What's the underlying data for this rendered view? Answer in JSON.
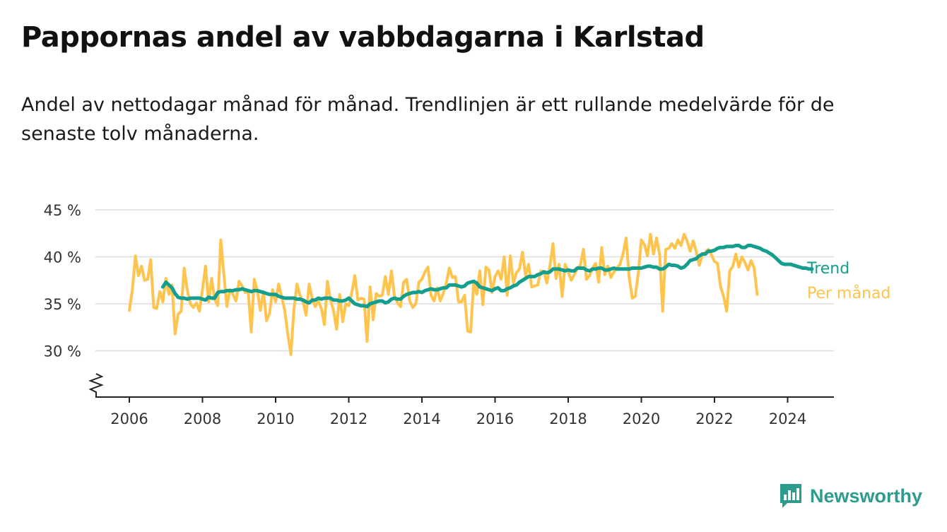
{
  "title": "Pappornas andel av vabbdagarna i Karlstad",
  "subtitle": "Andel av nettodagar månad för månad. Trendlinjen är ett rullande medelvärde för de senaste tolv månaderna.",
  "colors": {
    "trend": "#139e8e",
    "monthly": "#ffc44d",
    "grid": "#dddddd",
    "axis": "#222222",
    "brand": "#2d9c8c"
  },
  "brand": {
    "name": "Newsworthy",
    "icon": "newsworthy-bar-chart-icon"
  },
  "chart_data": {
    "type": "line",
    "y_ticks": [
      "45 %",
      "40 %",
      "35 %",
      "30 %"
    ],
    "x_ticks": [
      "2006",
      "2008",
      "2010",
      "2012",
      "2014",
      "2016",
      "2018",
      "2020",
      "2022",
      "2024"
    ],
    "ylim": [
      25,
      45
    ],
    "xlim": [
      "2005-03",
      "2025-02"
    ],
    "y_axis_broken": true,
    "grid": true,
    "series_labels": [
      "Trend",
      "Per månad"
    ],
    "series": [
      {
        "name": "Trend",
        "color": "#139e8e",
        "start": "2006-12",
        "values": [
          36.8,
          37.3,
          37.0,
          36.7,
          36.1,
          35.7,
          35.6,
          35.6,
          35.5,
          35.6,
          35.6,
          35.6,
          35.6,
          35.5,
          35.4,
          35.7,
          35.6,
          35.6,
          36.2,
          36.3,
          36.3,
          36.4,
          36.4,
          36.4,
          36.5,
          36.5,
          36.6,
          36.5,
          36.4,
          36.3,
          36.4,
          36.4,
          36.3,
          36.2,
          36.1,
          36.0,
          36.0,
          36.0,
          35.8,
          35.7,
          35.6,
          35.6,
          35.6,
          35.6,
          35.5,
          35.5,
          35.4,
          35.2,
          35.1,
          35.4,
          35.4,
          35.6,
          35.5,
          35.6,
          35.6,
          35.6,
          35.4,
          35.4,
          35.3,
          35.3,
          35.4,
          35.6,
          35.3,
          35.0,
          34.9,
          34.8,
          34.8,
          34.7,
          35.0,
          35.1,
          35.2,
          35.3,
          35.3,
          35.1,
          35.2,
          35.5,
          35.6,
          35.5,
          35.5,
          35.8,
          36.0,
          36.1,
          36.2,
          36.2,
          36.3,
          36.2,
          36.4,
          36.5,
          36.6,
          36.5,
          36.5,
          36.6,
          36.7,
          36.7,
          37.0,
          37.0,
          37.0,
          36.9,
          36.8,
          36.9,
          37.2,
          37.3,
          37.4,
          37.2,
          36.8,
          36.7,
          36.6,
          36.5,
          36.4,
          36.6,
          36.7,
          36.4,
          36.4,
          36.6,
          36.7,
          36.9,
          37.0,
          37.3,
          37.5,
          37.7,
          37.9,
          37.9,
          37.9,
          38.1,
          38.2,
          38.4,
          38.3,
          38.4,
          38.7,
          38.7,
          38.7,
          38.6,
          38.5,
          38.6,
          38.5,
          38.5,
          38.8,
          38.8,
          38.8,
          38.6,
          38.5,
          38.7,
          38.7,
          38.8,
          38.8,
          38.6,
          38.6,
          38.7,
          38.8,
          38.7,
          38.7,
          38.7,
          38.7,
          38.7,
          38.8,
          38.8,
          38.8,
          38.8,
          38.9,
          39.0,
          39.0,
          38.9,
          38.9,
          38.7,
          38.7,
          38.9,
          39.2,
          39.1,
          39.1,
          39.0,
          38.8,
          38.9,
          39.2,
          39.6,
          39.7,
          39.8,
          40.1,
          40.3,
          40.3,
          40.6,
          40.6,
          40.7,
          40.9,
          41.0,
          41.0,
          41.1,
          41.1,
          41.1,
          41.2,
          41.2,
          41.0,
          41.0,
          41.2,
          41.2,
          41.1,
          41.0,
          40.9,
          40.7,
          40.6,
          40.4,
          40.2,
          39.9,
          39.6,
          39.3,
          39.2,
          39.2,
          39.2,
          39.1,
          39.0,
          38.9,
          38.8,
          38.8,
          38.7,
          38.7
        ]
      },
      {
        "name": "Per månad",
        "color": "#ffc44d",
        "start": "2006-01",
        "values": [
          34.3,
          36.5,
          40.1,
          38.0,
          39.0,
          37.5,
          37.6,
          39.7,
          34.6,
          34.5,
          36.3,
          35.2,
          37.7,
          36.0,
          37.0,
          31.8,
          33.9,
          34.2,
          38.8,
          36.5,
          35.0,
          34.6,
          35.1,
          34.2,
          36.5,
          39.0,
          35.2,
          37.7,
          35.5,
          34.8,
          41.8,
          38.2,
          34.7,
          36.5,
          36.0,
          35.3,
          37.4,
          36.9,
          36.2,
          36.3,
          32.0,
          37.6,
          36.4,
          34.3,
          36.3,
          33.2,
          34.0,
          36.5,
          35.2,
          37.1,
          35.7,
          34.3,
          31.8,
          29.6,
          34.4,
          37.1,
          35.9,
          35.2,
          33.8,
          37.1,
          35.5,
          34.7,
          35.3,
          34.5,
          32.8,
          37.4,
          35.4,
          34.3,
          32.3,
          36.0,
          33.1,
          35.0,
          34.8,
          36.2,
          38.0,
          35.4,
          35.6,
          35.5,
          31.0,
          36.8,
          33.3,
          36.1,
          35.8,
          35.9,
          37.9,
          36.0,
          38.5,
          35.8,
          35.1,
          34.7,
          37.3,
          37.6,
          35.3,
          34.6,
          35.0,
          37.3,
          37.6,
          38.4,
          38.9,
          35.9,
          35.3,
          36.7,
          35.3,
          36.1,
          37.2,
          38.8,
          37.8,
          37.9,
          35.2,
          35.2,
          35.9,
          32.1,
          32.0,
          37.4,
          36.0,
          38.5,
          34.9,
          38.9,
          38.6,
          36.2,
          37.9,
          38.5,
          37.6,
          40.0,
          35.9,
          40.1,
          37.2,
          38.3,
          38.7,
          40.5,
          38.0,
          39.2,
          36.8,
          36.9,
          37.0,
          38.5,
          38.4,
          37.2,
          39.0,
          41.4,
          37.7,
          39.2,
          35.8,
          39.2,
          38.4,
          37.5,
          38.1,
          38.8,
          39.1,
          40.8,
          37.6,
          38.0,
          38.8,
          39.3,
          37.3,
          41.0,
          38.1,
          39.0,
          37.8,
          38.4,
          38.8,
          39.2,
          40.3,
          42.0,
          37.8,
          35.6,
          35.8,
          38.3,
          41.8,
          41.3,
          40.1,
          42.4,
          40.3,
          42.0,
          40.2,
          34.2,
          40.8,
          40.9,
          41.4,
          40.9,
          41.8,
          41.2,
          42.4,
          41.7,
          40.6,
          41.7,
          40.6,
          39.1,
          40.2,
          40.5,
          40.8,
          40.2,
          39.5,
          39.3,
          36.8,
          35.8,
          34.2,
          38.5,
          39.0,
          40.3,
          38.9,
          40.0,
          39.4,
          38.6,
          39.6,
          38.8,
          36.0
        ]
      }
    ]
  }
}
